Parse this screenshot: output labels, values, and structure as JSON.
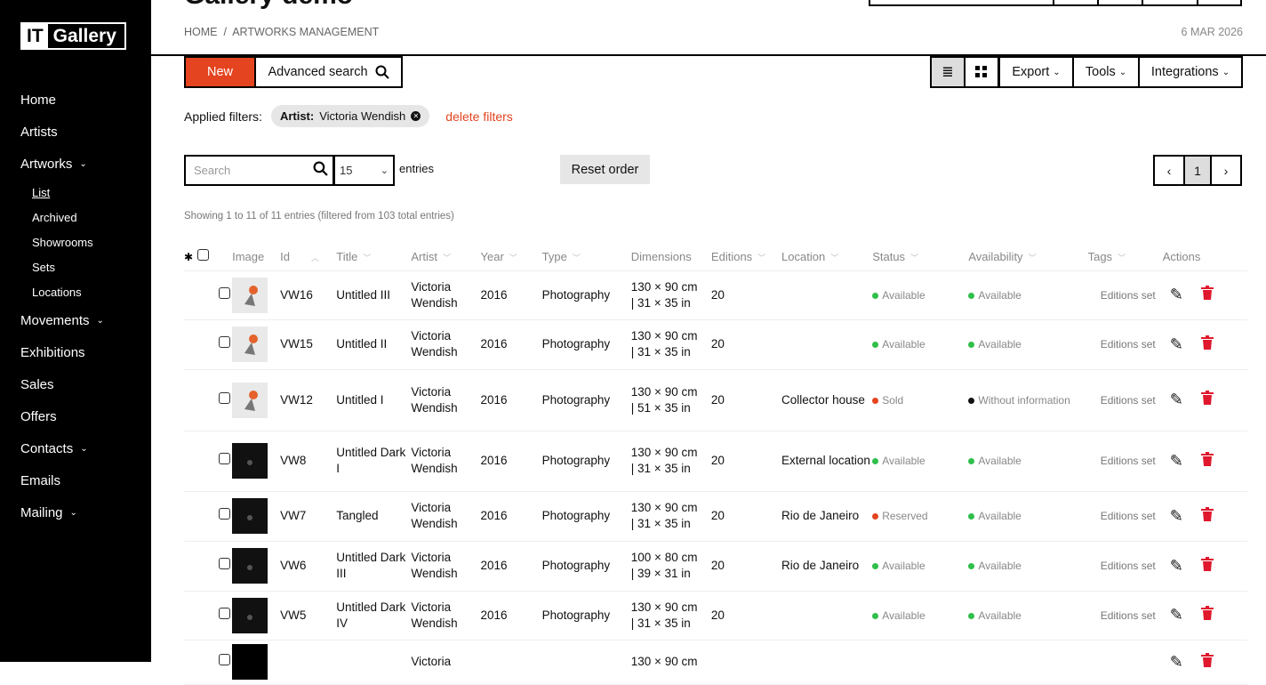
{
  "app": {
    "logo_it": "IT",
    "logo_gallery": "Gallery",
    "title": "Gallery demo",
    "date": "6 MAR 2026"
  },
  "breadcrumb": {
    "home": "HOME",
    "sep": "/",
    "current": "ARTWORKS MANAGEMENT"
  },
  "sidebar": {
    "items": [
      {
        "label": "Home"
      },
      {
        "label": "Artists"
      },
      {
        "label": "Artworks",
        "chev": true,
        "subs": [
          "List",
          "Archived",
          "Showrooms",
          "Sets",
          "Locations"
        ]
      },
      {
        "label": "Movements",
        "chev": true
      },
      {
        "label": "Exhibitions"
      },
      {
        "label": "Sales"
      },
      {
        "label": "Offers"
      },
      {
        "label": "Contacts",
        "chev": true
      },
      {
        "label": "Emails"
      },
      {
        "label": "Mailing",
        "chev": true
      }
    ]
  },
  "toolbar": {
    "new": "New",
    "advanced": "Advanced search",
    "export": "Export",
    "tools": "Tools",
    "integrations": "Integrations"
  },
  "filters": {
    "label": "Applied filters:",
    "chip_key": "Artist:",
    "chip_value": "Victoria Wendish",
    "delete": "delete filters"
  },
  "list": {
    "search_placeholder": "Search",
    "page_size": "15",
    "entries": "entries",
    "reset": "Reset order",
    "page": "1",
    "showing": "Showing 1 to 11 of 11 entries (filtered from 103 total entries)"
  },
  "columns": [
    "Image",
    "Id",
    "Title",
    "Artist",
    "Year",
    "Type",
    "Dimensions",
    "Editions",
    "Location",
    "Status",
    "Availability",
    "Tags",
    "Actions"
  ],
  "colors": {
    "accent": "#e4441f",
    "available": "#2fbf4a",
    "sold": "#e4441f",
    "none": "#111111",
    "delete": "#e0182d"
  },
  "rows": [
    {
      "id": "VW16",
      "title": "Untitled III",
      "artist": "Victoria Wendish",
      "year": "2016",
      "type": "Photography",
      "dim1": "130 × 90 cm",
      "dim2": "| 31 × 35 in",
      "editions": "20",
      "location": "",
      "status": "Available",
      "status_color": "#2fbf4a",
      "availability": "Available",
      "avail_color": "#2fbf4a",
      "tags": "Editions set",
      "thumb": "light"
    },
    {
      "id": "VW15",
      "title": "Untitled II",
      "artist": "Victoria Wendish",
      "year": "2016",
      "type": "Photography",
      "dim1": "130 × 90 cm",
      "dim2": "| 31 × 35 in",
      "editions": "20",
      "location": "",
      "status": "Available",
      "status_color": "#2fbf4a",
      "availability": "Available",
      "avail_color": "#2fbf4a",
      "tags": "Editions set",
      "thumb": "light"
    },
    {
      "id": "VW12",
      "title": "Untitled I",
      "artist": "Victoria Wendish",
      "year": "2016",
      "type": "Photography",
      "dim1": "130 × 90 cm",
      "dim2": "| 51 × 35 in",
      "editions": "20",
      "location": "Collector house",
      "status": "Sold",
      "status_color": "#e4441f",
      "availability": "Without information",
      "avail_color": "#111111",
      "tags": "Editions set",
      "thumb": "light"
    },
    {
      "id": "VW8",
      "title": "Untitled Dark I",
      "artist": "Victoria Wendish",
      "year": "2016",
      "type": "Photography",
      "dim1": "130 × 90 cm",
      "dim2": "| 31 × 35 in",
      "editions": "20",
      "location": "External location",
      "status": "Available",
      "status_color": "#2fbf4a",
      "availability": "Available",
      "avail_color": "#2fbf4a",
      "tags": "Editions set",
      "thumb": "dark"
    },
    {
      "id": "VW7",
      "title": "Tangled",
      "artist": "Victoria Wendish",
      "year": "2016",
      "type": "Photography",
      "dim1": "130 × 90 cm",
      "dim2": "| 31 × 35 in",
      "editions": "20",
      "location": "Rio de Janeiro",
      "status": "Reserved",
      "status_color": "#e4441f",
      "availability": "Available",
      "avail_color": "#2fbf4a",
      "tags": "Editions set",
      "thumb": "dark"
    },
    {
      "id": "VW6",
      "title": "Untitled Dark III",
      "artist": "Victoria Wendish",
      "year": "2016",
      "type": "Photography",
      "dim1": "100 × 80 cm",
      "dim2": "| 39 × 31 in",
      "editions": "20",
      "location": "Rio de Janeiro",
      "status": "Available",
      "status_color": "#2fbf4a",
      "availability": "Available",
      "avail_color": "#2fbf4a",
      "tags": "Editions set",
      "thumb": "dark"
    },
    {
      "id": "VW5",
      "title": "Untitled Dark IV",
      "artist": "Victoria Wendish",
      "year": "2016",
      "type": "Photography",
      "dim1": "130 × 90 cm",
      "dim2": "| 31 × 35 in",
      "editions": "20",
      "location": "",
      "status": "Available",
      "status_color": "#2fbf4a",
      "availability": "Available",
      "avail_color": "#2fbf4a",
      "tags": "Editions set",
      "thumb": "dark"
    },
    {
      "id": "",
      "title": "",
      "artist": "Victoria",
      "year": "",
      "type": "",
      "dim1": "130 × 90 cm",
      "dim2": "",
      "editions": "",
      "location": "",
      "status": "",
      "status_color": "#2fbf4a",
      "availability": "",
      "avail_color": "#2fbf4a",
      "tags": "",
      "thumb": "black"
    }
  ]
}
